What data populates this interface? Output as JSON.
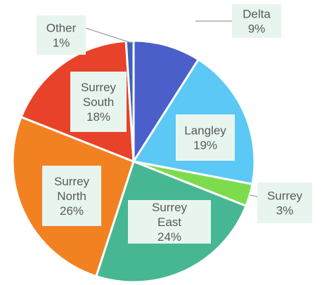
{
  "chart_data": {
    "type": "pie",
    "title": "",
    "slices": [
      {
        "name": "Delta",
        "value": 9,
        "label": "9%",
        "color": "#4a5fc9"
      },
      {
        "name": "Langley",
        "value": 19,
        "label": "19%",
        "color": "#5bc8f5"
      },
      {
        "name": "Surrey",
        "value": 3,
        "label": "3%",
        "color": "#7ddc4d"
      },
      {
        "name": "Surrey East",
        "value": 24,
        "label": "24%",
        "color": "#46b792"
      },
      {
        "name": "Surrey North",
        "value": 26,
        "label": "26%",
        "color": "#f28122"
      },
      {
        "name": "Surrey South",
        "value": 18,
        "label": "18%",
        "color": "#e8422a"
      },
      {
        "name": "Other",
        "value": 1,
        "label": "1%",
        "color": "#3e62b4"
      }
    ],
    "legend": "none",
    "data_labels": "category-and-percent"
  }
}
